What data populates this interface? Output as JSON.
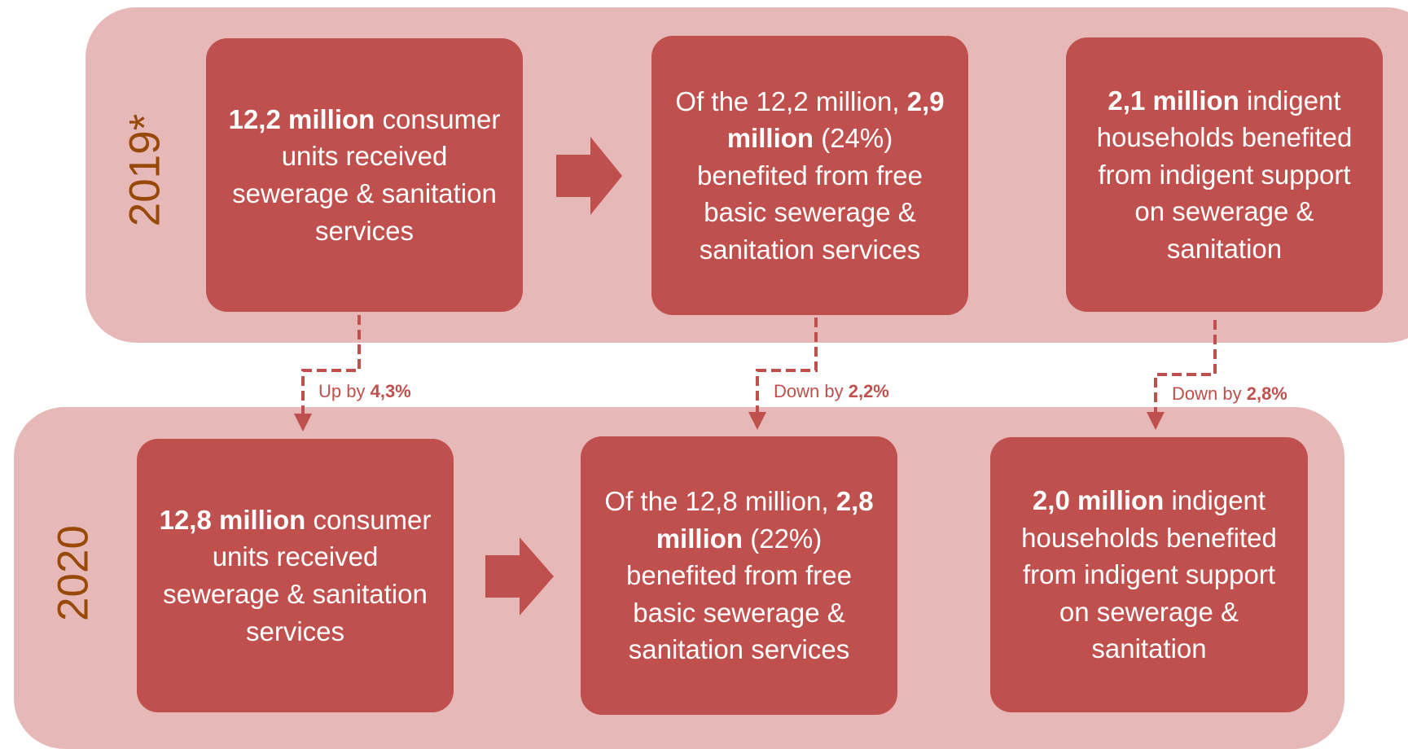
{
  "rows": [
    {
      "year": "2019*",
      "boxes": [
        {
          "parts": [
            {
              "text": "12,2 million",
              "bold": true
            },
            {
              "text": " consumer units received sewerage & sanitation services",
              "bold": false
            }
          ]
        },
        {
          "parts": [
            {
              "text": "Of the 12,2 million, ",
              "bold": false
            },
            {
              "text": "2,9 million",
              "bold": true
            },
            {
              "text": " (24%) benefited from free basic sewerage & sanitation services",
              "bold": false
            }
          ]
        },
        {
          "parts": [
            {
              "text": "2,1 million",
              "bold": true
            },
            {
              "text": " indigent households benefited from indigent support on sewerage & sanitation",
              "bold": false
            }
          ]
        }
      ]
    },
    {
      "year": "2020",
      "boxes": [
        {
          "parts": [
            {
              "text": "12,8 million",
              "bold": true
            },
            {
              "text": " consumer units received sewerage & sanitation services",
              "bold": false
            }
          ]
        },
        {
          "parts": [
            {
              "text": "Of the 12,8 million, ",
              "bold": false
            },
            {
              "text": "2,8 million",
              "bold": true
            },
            {
              "text": " (22%) benefited from free basic sewerage & sanitation services",
              "bold": false
            }
          ]
        },
        {
          "parts": [
            {
              "text": "2,0 million",
              "bold": true
            },
            {
              "text": " indigent households benefited from indigent support on sewerage & sanitation",
              "bold": false
            }
          ]
        }
      ]
    }
  ],
  "changes": [
    {
      "parts": [
        {
          "text": "Up by ",
          "bold": false
        },
        {
          "text": "4,3%",
          "bold": true
        }
      ]
    },
    {
      "parts": [
        {
          "text": "Down by ",
          "bold": false
        },
        {
          "text": "2,2%",
          "bold": true
        }
      ]
    },
    {
      "parts": [
        {
          "text": "Down by ",
          "bold": false
        },
        {
          "text": "2,8%",
          "bold": true
        }
      ]
    }
  ]
}
